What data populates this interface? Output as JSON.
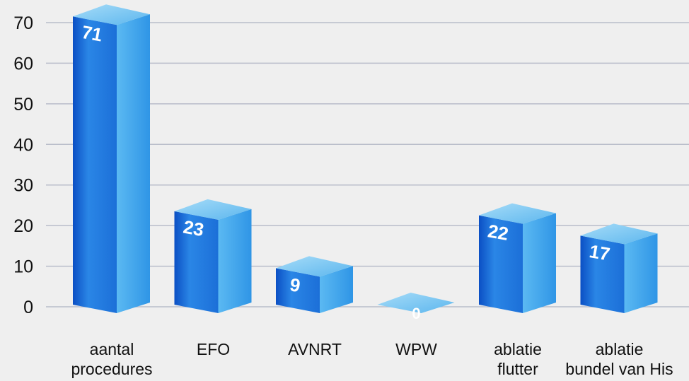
{
  "chart_data": {
    "type": "bar3d",
    "categories": [
      "aantal\nprocedures",
      "EFO",
      "AVNRT",
      "WPW",
      "ablatie\nflutter",
      "ablatie\nbundel van His"
    ],
    "values": [
      71,
      23,
      9,
      0,
      22,
      17
    ],
    "color": "#1f7fe0",
    "ylim": [
      0,
      70
    ],
    "yticks": [
      0,
      10,
      20,
      30,
      40,
      50,
      60,
      70
    ],
    "grid": true
  }
}
